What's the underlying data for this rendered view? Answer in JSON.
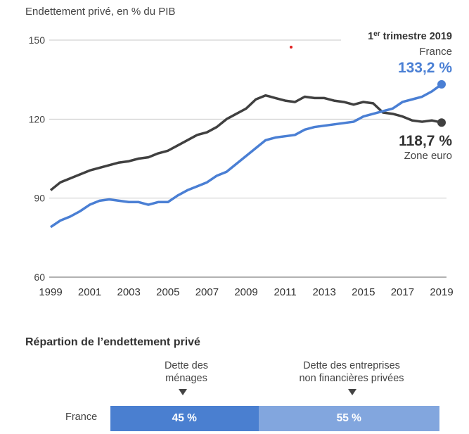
{
  "chart_data": [
    {
      "type": "line",
      "title": "Endettement privé, en % du PIB",
      "xlabel": "",
      "ylabel": "",
      "ylim": [
        60,
        150
      ],
      "xlim": [
        1999,
        2019
      ],
      "yticks": [
        60,
        90,
        120,
        150
      ],
      "xticks": [
        "1999",
        "2001",
        "2003",
        "2005",
        "2007",
        "2009",
        "2011",
        "2013",
        "2015",
        "2017",
        "2019"
      ],
      "grid": true,
      "x": [
        1999,
        1999.5,
        2000,
        2000.5,
        2001,
        2001.5,
        2002,
        2002.5,
        2003,
        2003.5,
        2004,
        2004.5,
        2005,
        2005.5,
        2006,
        2006.5,
        2007,
        2007.5,
        2008,
        2008.5,
        2009,
        2009.5,
        2010,
        2010.5,
        2011,
        2011.5,
        2012,
        2012.5,
        2013,
        2013.5,
        2014,
        2014.5,
        2015,
        2015.5,
        2016,
        2016.5,
        2017,
        2017.5,
        2018,
        2018.5,
        2019
      ],
      "series": [
        {
          "name": "Zone euro",
          "color": "#404040",
          "values": [
            93,
            96,
            97.5,
            99,
            100.5,
            101.5,
            102.5,
            103.5,
            104,
            105,
            105.5,
            107,
            108,
            110,
            112,
            114,
            115,
            117,
            120,
            122,
            124,
            127.5,
            129,
            128,
            127,
            126.5,
            128.5,
            128,
            128,
            127,
            126.5,
            125.5,
            126.5,
            126,
            122.5,
            122,
            121,
            119.5,
            119,
            119.5,
            118.7
          ]
        },
        {
          "name": "France",
          "color": "#4a7fd4",
          "values": [
            79,
            81.5,
            83,
            85,
            87.5,
            89,
            89.5,
            89,
            88.5,
            88.5,
            87.5,
            88.5,
            88.5,
            91,
            93,
            94.5,
            96,
            98.5,
            100,
            103,
            106,
            109,
            112,
            113,
            113.5,
            114,
            116,
            117,
            117.5,
            118,
            118.5,
            119,
            121,
            122,
            123,
            124,
            126.5,
            127.5,
            128.5,
            130.5,
            133.2
          ]
        }
      ],
      "annotations": {
        "period_prefix": "1",
        "period_sup": "er",
        "period_suffix": " trimestre 2019",
        "france_label": "France",
        "france_value": "133,2 %",
        "euro_value": "118,7 %",
        "euro_label": "Zone euro"
      }
    },
    {
      "type": "bar",
      "title": "Répartion de l’endettement privé",
      "categories": [
        "France"
      ],
      "series": [
        {
          "name": "Dette des ménages",
          "name_lines": [
            "Dette des",
            "ménages"
          ],
          "values": [
            45
          ],
          "label": "45 %",
          "color": "#4a7fd0"
        },
        {
          "name": "Dette des entreprises non financières privées",
          "name_lines": [
            "Dette des entreprises",
            "non financières privées"
          ],
          "values": [
            55
          ],
          "label": "55 %",
          "color": "#82a6de"
        }
      ],
      "stacked": true
    }
  ]
}
